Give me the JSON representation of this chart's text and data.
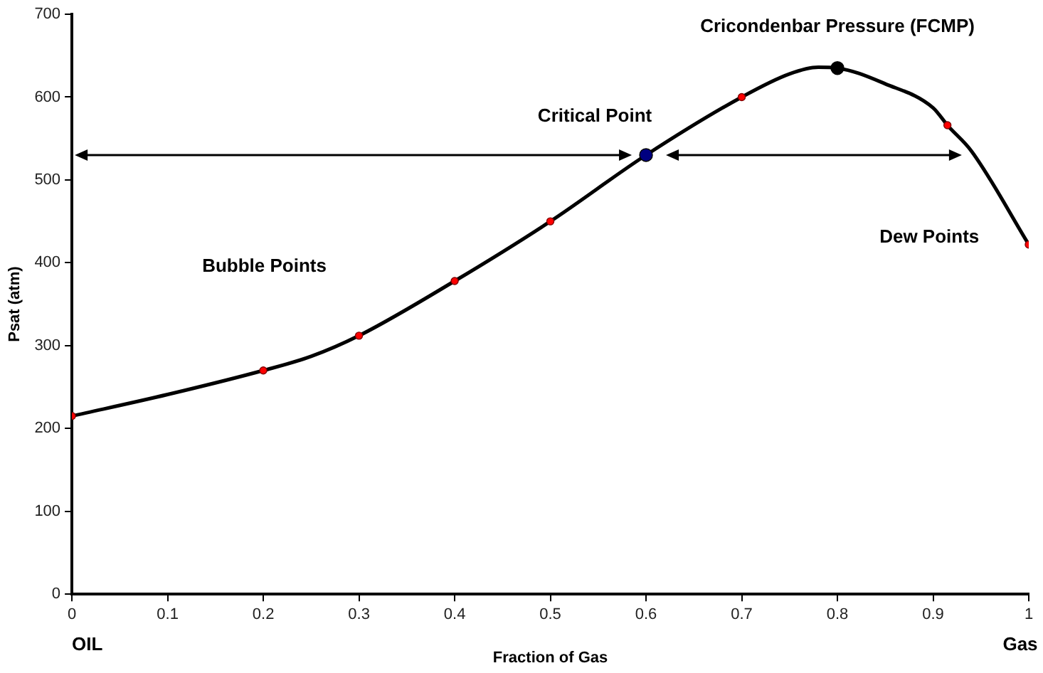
{
  "chart_data": {
    "type": "line",
    "xlabel": "Fraction of Gas",
    "ylabel": "Psat (atm)",
    "xlim": [
      0,
      1
    ],
    "xticks": [
      0,
      0.1,
      0.2,
      0.3,
      0.4,
      0.5,
      0.6,
      0.7,
      0.8,
      0.9,
      1
    ],
    "ylim": [
      0,
      700
    ],
    "yticks": [
      0,
      100,
      200,
      300,
      400,
      500,
      600,
      700
    ],
    "grid": false,
    "legend": false,
    "series": [
      {
        "color": "#000000",
        "marker": "none",
        "x": [
          0,
          0.1,
          0.2,
          0.25,
          0.3,
          0.4,
          0.5,
          0.6,
          0.7,
          0.75,
          0.78,
          0.8,
          0.85,
          0.9,
          0.915,
          0.94,
          1
        ],
        "values": [
          215,
          241,
          270,
          287,
          312,
          378,
          450,
          530,
          600,
          628,
          636,
          635,
          616,
          587,
          566,
          535,
          422
        ]
      },
      {
        "type": "scatter",
        "color": "#ff0000",
        "marker": "circle",
        "x": [
          0,
          0.2,
          0.3,
          0.4,
          0.5,
          0.7,
          0.915,
          1
        ],
        "values": [
          215,
          270,
          312,
          378,
          450,
          600,
          566,
          422
        ]
      },
      {
        "type": "scatter",
        "color": "#000080",
        "marker": "circle",
        "x": [
          0.6
        ],
        "values": [
          530
        ]
      },
      {
        "type": "scatter",
        "color": "#000000",
        "marker": "circle",
        "x": [
          0.8
        ],
        "values": [
          635
        ]
      }
    ],
    "annotations": [
      {
        "text": "Critical Point",
        "x": 0.6,
        "y": 530
      },
      {
        "text": "Cricondenbar Pressure (FCMP)",
        "x": 0.8,
        "y": 635
      },
      "Bubble Points",
      "Dew Points",
      "OIL",
      "Gas"
    ]
  }
}
